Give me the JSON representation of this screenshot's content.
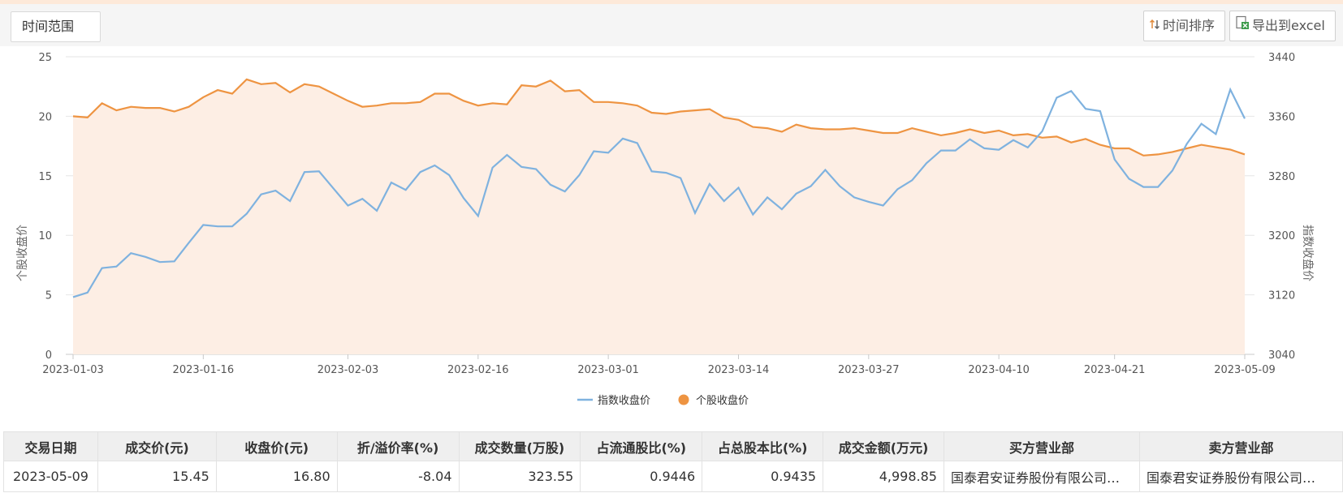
{
  "toolbar": {
    "range_label": "时间范围",
    "sort_label": "时间排序",
    "export_label": "导出到excel"
  },
  "colors": {
    "index_line": "#7fb2df",
    "stock_line": "#ee9442",
    "area_fill": "#fdeee4"
  },
  "chart_data": {
    "type": "line",
    "left_axis": {
      "label": "个股收盘价",
      "range": [
        0,
        25
      ],
      "ticks": [
        "0",
        "5",
        "10",
        "15",
        "20",
        "25"
      ]
    },
    "right_axis": {
      "label": "指数收盘价",
      "range": [
        3040,
        3440
      ],
      "ticks": [
        "3040",
        "3120",
        "3200",
        "3280",
        "3360",
        "3440"
      ]
    },
    "x_ticks": [
      "2023-01-03",
      "2023-01-16",
      "2023-02-03",
      "2023-02-16",
      "2023-03-01",
      "2023-03-14",
      "2023-03-27",
      "2023-04-10",
      "2023-04-21",
      "2023-05-09"
    ],
    "grid": true,
    "legend_position": "bottom-center",
    "series": [
      {
        "name": "指数收盘价",
        "axis": "right",
        "values": [
          3117,
          3123,
          3156,
          3158,
          3176,
          3171,
          3164,
          3165,
          3190,
          3214,
          3212,
          3212,
          3229,
          3255,
          3260,
          3246,
          3285,
          3286,
          3263,
          3240,
          3249,
          3233,
          3271,
          3261,
          3285,
          3294,
          3281,
          3250,
          3226,
          3291,
          3308,
          3292,
          3289,
          3268,
          3259,
          3281,
          3313,
          3311,
          3330,
          3324,
          3286,
          3284,
          3277,
          3230,
          3269,
          3246,
          3264,
          3228,
          3251,
          3235,
          3256,
          3266,
          3288,
          3266,
          3251,
          3245,
          3240,
          3262,
          3274,
          3297,
          3314,
          3314,
          3329,
          3317,
          3315,
          3328,
          3318,
          3340,
          3385,
          3394,
          3370,
          3367,
          3302,
          3276,
          3265,
          3265,
          3287,
          3323,
          3350,
          3336,
          3396,
          3357
        ]
      },
      {
        "name": "个股收盘价",
        "axis": "left",
        "values": [
          20.0,
          19.9,
          21.1,
          20.5,
          20.8,
          20.7,
          20.7,
          20.4,
          20.8,
          21.6,
          22.2,
          21.9,
          23.1,
          22.7,
          22.8,
          22.0,
          22.7,
          22.5,
          21.9,
          21.3,
          20.8,
          20.9,
          21.1,
          21.1,
          21.2,
          21.9,
          21.9,
          21.3,
          20.9,
          21.1,
          21.0,
          22.6,
          22.5,
          23.0,
          22.1,
          22.2,
          21.2,
          21.2,
          21.1,
          20.9,
          20.3,
          20.2,
          20.4,
          20.5,
          20.6,
          19.9,
          19.7,
          19.1,
          19.0,
          18.7,
          19.3,
          19.0,
          18.9,
          18.9,
          19.0,
          18.8,
          18.6,
          18.6,
          19.0,
          18.7,
          18.4,
          18.6,
          18.9,
          18.6,
          18.8,
          18.4,
          18.5,
          18.2,
          18.3,
          17.8,
          18.1,
          17.6,
          17.3,
          17.3,
          16.7,
          16.8,
          17.0,
          17.3,
          17.6,
          17.4,
          17.2,
          16.8
        ]
      }
    ]
  },
  "table": {
    "headers": [
      "交易日期",
      "成交价(元)",
      "收盘价(元)",
      "折/溢价率(%)",
      "成交数量(万股)",
      "占流通股比(%)",
      "占总股本比(%)",
      "成交金额(万元)",
      "买方营业部",
      "卖方营业部"
    ],
    "rows": [
      [
        "2023-05-09",
        "15.45",
        "16.80",
        "-8.04",
        "323.55",
        "0.9446",
        "0.9435",
        "4,998.85",
        "国泰君安证券股份有限公司杭…",
        "国泰君安证券股份有限公司…"
      ]
    ]
  }
}
